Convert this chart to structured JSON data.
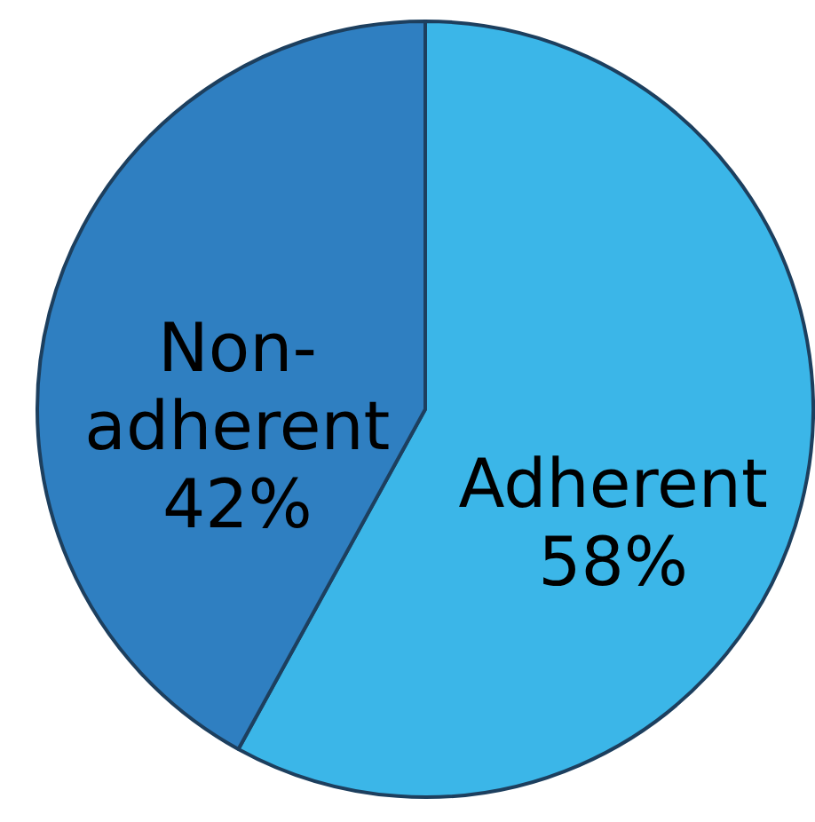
{
  "chart_data": {
    "type": "pie",
    "categories": [
      "Adherent",
      "Non-adherent"
    ],
    "values": [
      58,
      42
    ],
    "colors": [
      "#3bb6e8",
      "#2f7fc1"
    ],
    "value_labels": [
      "58%",
      "42%"
    ]
  }
}
